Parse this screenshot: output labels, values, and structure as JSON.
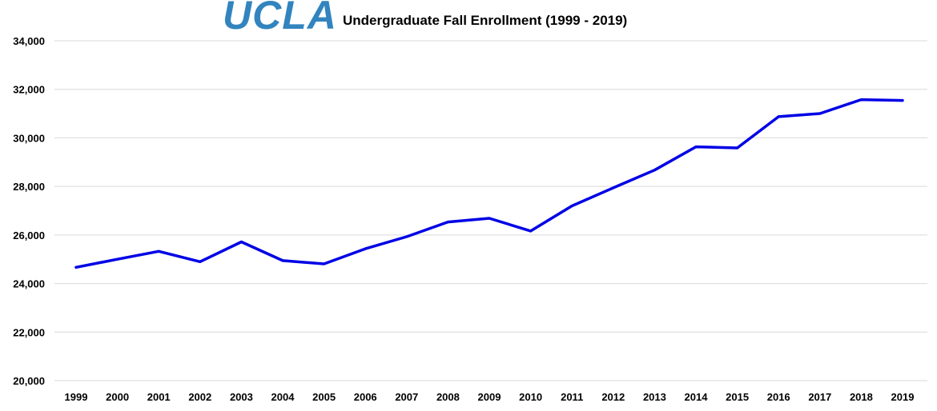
{
  "logo": {
    "text": "UCLA",
    "color": "#3284BF"
  },
  "chart_data": {
    "type": "line",
    "title": "Undergraduate Fall Enrollment (1999 - 2019)",
    "xlabel": "",
    "ylabel": "",
    "categories": [
      "1999",
      "2000",
      "2001",
      "2002",
      "2003",
      "2004",
      "2005",
      "2006",
      "2007",
      "2008",
      "2009",
      "2010",
      "2011",
      "2012",
      "2013",
      "2014",
      "2015",
      "2016",
      "2017",
      "2018",
      "2019"
    ],
    "series": [
      {
        "values": [
          24668,
          24999,
          25328,
          24899,
          25715,
          24946,
          24811,
          25432,
          25928,
          26536,
          26687,
          26162,
          27199,
          27941,
          28674,
          29633,
          29585,
          30873,
          31002,
          31577,
          31543
        ],
        "color": "#0000E6"
      }
    ],
    "ylim": [
      20000,
      34000
    ],
    "yticks": [
      20000,
      22000,
      24000,
      26000,
      28000,
      30000,
      32000,
      34000
    ],
    "ytick_labels": [
      "20,000",
      "22,000",
      "24,000",
      "26,000",
      "28,000",
      "30,000",
      "32,000",
      "34,000"
    ],
    "grid": true,
    "legend": "none"
  }
}
